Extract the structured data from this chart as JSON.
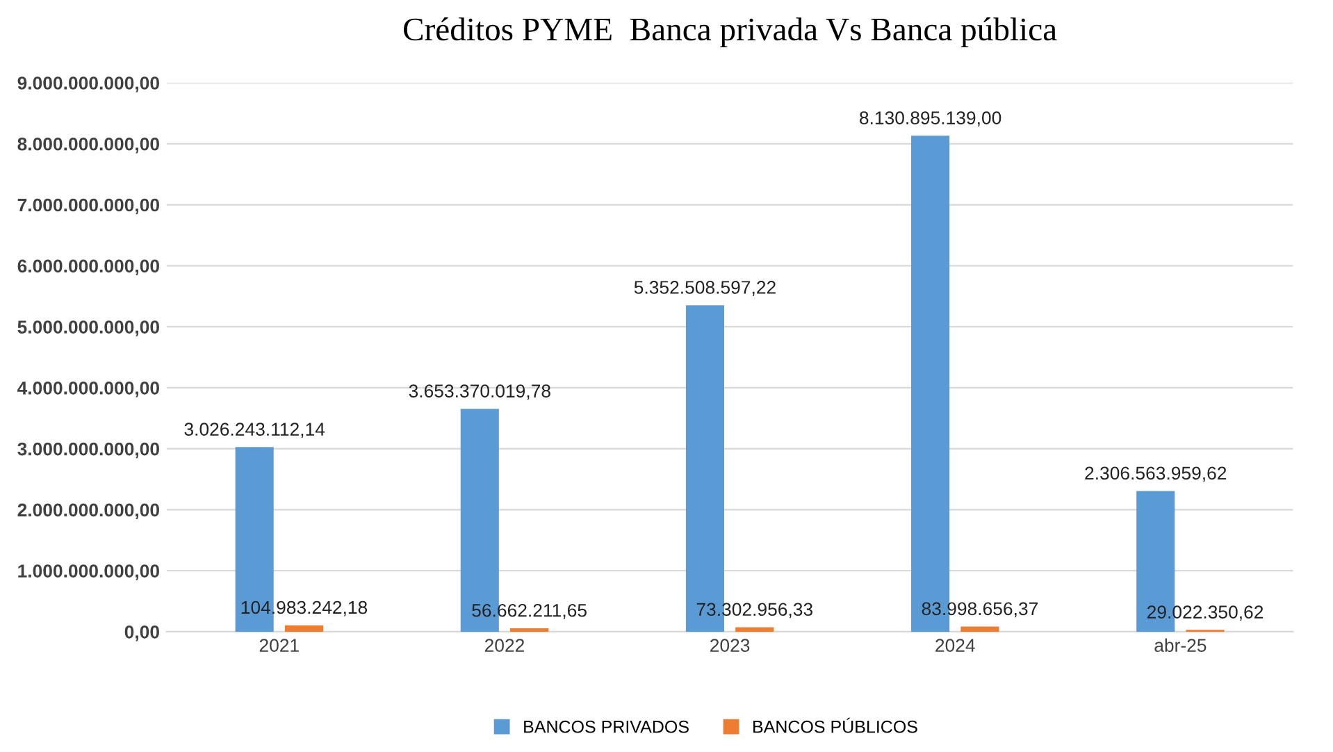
{
  "chart_data": {
    "type": "bar",
    "title": "Créditos PYME  Banca privada Vs Banca pública",
    "categories": [
      "2021",
      "2022",
      "2023",
      "2024",
      "abr-25"
    ],
    "series": [
      {
        "name": "BANCOS PRIVADOS",
        "color": "#5b9bd5",
        "values": [
          3026243112.14,
          3653370019.78,
          5352508597.22,
          8130895139.0,
          2306563959.62
        ],
        "value_labels": [
          "3.026.243.112,14",
          "3.653.370.019,78",
          "5.352.508.597,22",
          "8.130.895.139,00",
          "2.306.563.959,62"
        ]
      },
      {
        "name": "BANCOS PÚBLICOS",
        "color": "#ed7d31",
        "values": [
          104983242.18,
          56662211.65,
          73302956.33,
          83998656.37,
          29022350.62
        ],
        "value_labels": [
          "104.983.242,18",
          "56.662.211,65",
          "73.302.956,33",
          "83.998.656,37",
          "29.022.350,62"
        ]
      }
    ],
    "ylim": [
      0,
      9000000000
    ],
    "yticks": [
      {
        "value": 0,
        "label": "0,00"
      },
      {
        "value": 1000000000,
        "label": "1.000.000.000,00"
      },
      {
        "value": 2000000000,
        "label": "2.000.000.000,00"
      },
      {
        "value": 3000000000,
        "label": "3.000.000.000,00"
      },
      {
        "value": 4000000000,
        "label": "4.000.000.000,00"
      },
      {
        "value": 5000000000,
        "label": "5.000.000.000,00"
      },
      {
        "value": 6000000000,
        "label": "6.000.000.000,00"
      },
      {
        "value": 7000000000,
        "label": "7.000.000.000,00"
      },
      {
        "value": 8000000000,
        "label": "8.000.000.000,00"
      },
      {
        "value": 9000000000,
        "label": "9.000.000.000,00"
      }
    ],
    "grid": "y",
    "legend": "bottom"
  }
}
